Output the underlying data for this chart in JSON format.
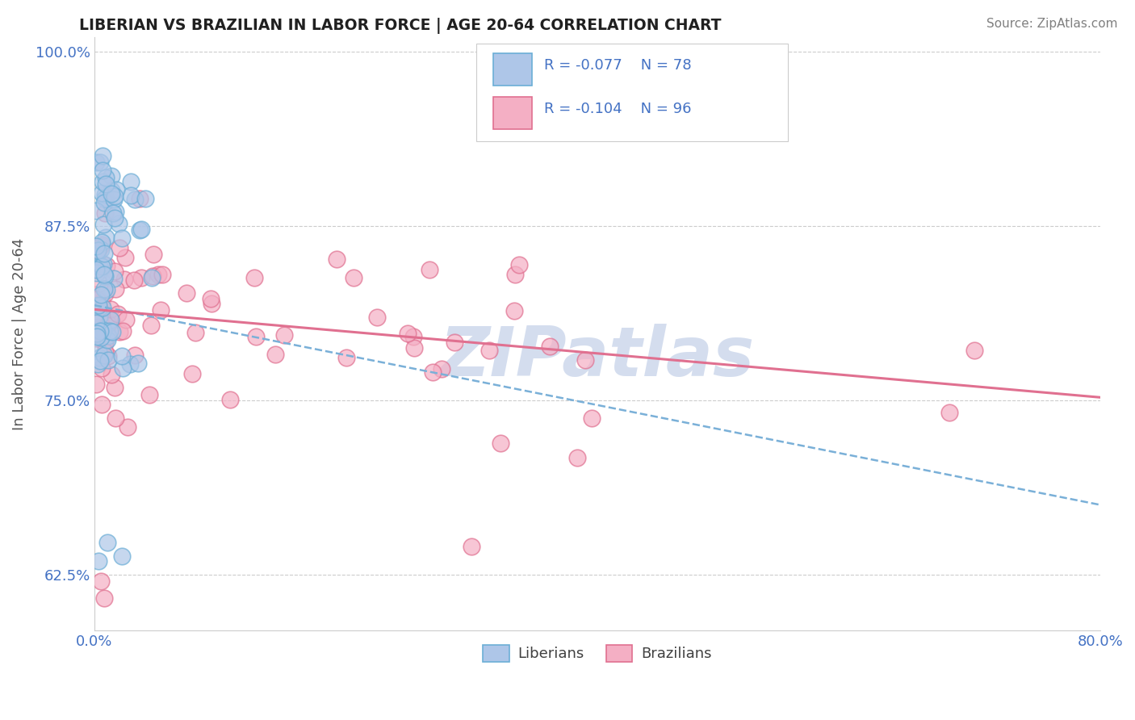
{
  "title": "LIBERIAN VS BRAZILIAN IN LABOR FORCE | AGE 20-64 CORRELATION CHART",
  "source": "Source: ZipAtlas.com",
  "ylabel": "In Labor Force | Age 20-64",
  "xmin": 0.0,
  "xmax": 0.8,
  "ymin": 0.585,
  "ymax": 1.01,
  "liberian_R": -0.077,
  "liberian_N": 78,
  "brazilian_R": -0.104,
  "brazilian_N": 96,
  "color_liberian_fill": "#aec6e8",
  "color_liberian_edge": "#6baed6",
  "color_brazilian_fill": "#f4afc4",
  "color_brazilian_edge": "#e07090",
  "color_liberian_line": "#7ab0d8",
  "color_brazilian_line": "#e07090",
  "color_axis_ticks": "#4472c4",
  "color_ylabel": "#555555",
  "color_title": "#202020",
  "color_source": "#808080",
  "color_legend_text": "#4472c4",
  "background_color": "#ffffff",
  "grid_color": "#cccccc",
  "watermark": "ZIPatlas",
  "watermark_color": "#cdd8ec",
  "y_ticks": [
    0.625,
    0.75,
    0.875,
    1.0
  ],
  "y_tick_labels": [
    "62.5%",
    "75.0%",
    "87.5%",
    "100.0%"
  ],
  "x_ticks": [
    0.0,
    0.8
  ],
  "x_tick_labels": [
    "0.0%",
    "80.0%"
  ],
  "lib_trend_x0": 0.0,
  "lib_trend_y0": 0.818,
  "lib_trend_x1": 0.8,
  "lib_trend_y1": 0.675,
  "bra_trend_x0": 0.0,
  "bra_trend_y0": 0.815,
  "bra_trend_x1": 0.8,
  "bra_trend_y1": 0.752
}
